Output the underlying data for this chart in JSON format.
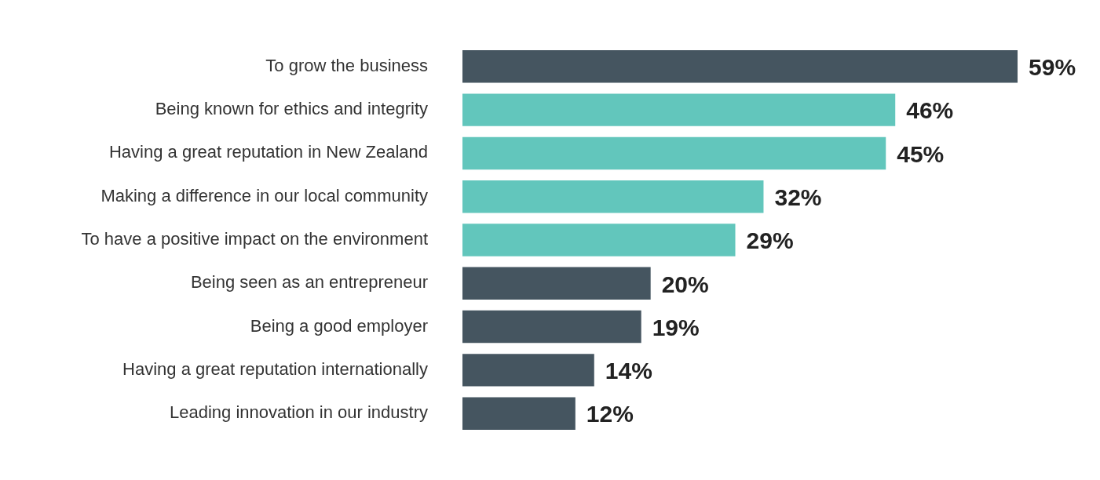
{
  "chart_data": {
    "type": "bar",
    "orientation": "horizontal",
    "categories": [
      "To grow the business",
      "Being known for ethics and integrity",
      "Having a great reputation in New Zealand",
      "Making a difference in our local community",
      "To have a positive impact on the environment",
      "Being seen as an entrepreneur",
      "Being a good employer",
      "Having a great reputation internationally",
      "Leading innovation in our industry"
    ],
    "values": [
      59,
      46,
      45,
      32,
      29,
      20,
      19,
      14,
      12
    ],
    "colors": [
      "#455560",
      "#62c6bc",
      "#62c6bc",
      "#62c6bc",
      "#62c6bc",
      "#455560",
      "#455560",
      "#455560",
      "#455560"
    ],
    "value_labels": [
      "59%",
      "46%",
      "45%",
      "32%",
      "29%",
      "20%",
      "19%",
      "14%",
      "12%"
    ],
    "grid": false,
    "legend": false
  }
}
